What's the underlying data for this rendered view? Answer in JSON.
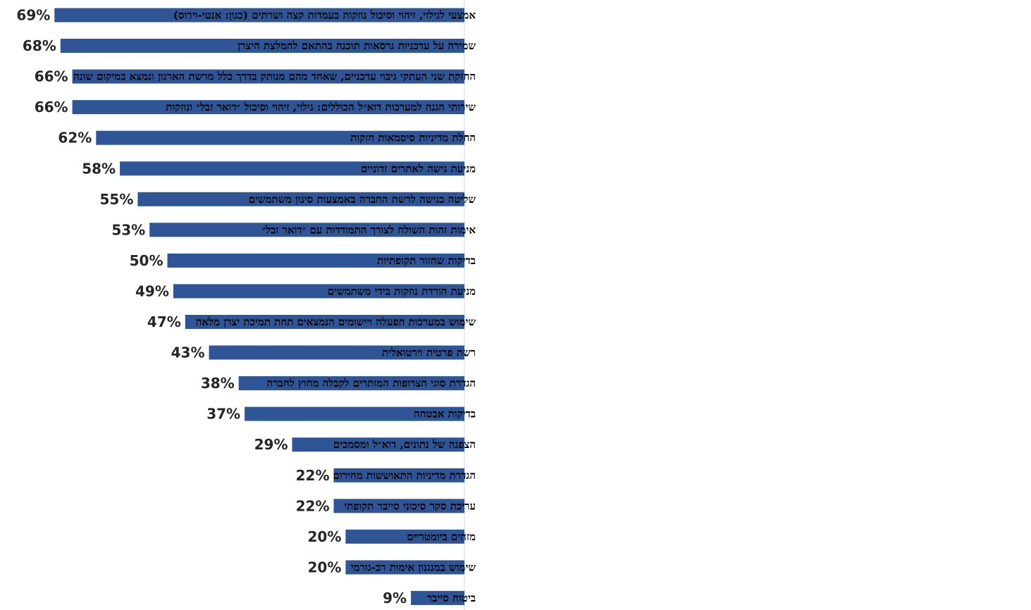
{
  "colors": {
    "bar": "#2F5597",
    "text": "#262626",
    "axis": "#D9D9D9"
  },
  "chart_data": {
    "type": "bar",
    "orientation": "horizontal",
    "value_suffix": "%",
    "xlim": [
      0,
      69
    ],
    "grid": false,
    "legend": "none",
    "categories": [
      "אמצעי לגילוי, זיהוי וסיכול נוזקות בעמדות קצה ושרתים (כגון: אנטי-וירוס)",
      "שמירה על עדכניות גרסאות תוכנה בהתאם להמלצת היצרן",
      "החזקת שני העתקי גיבוי עדכניים, שאחד מהם מנותק בדרך כלל מרשת הארגון ונמצא במיקום שונה",
      "שירותי הגנה למערכות דוא״ל הכוללים: גילוי, זיהוי וסיכול ״דואר זבל״ ונוזקות",
      "החלת מדיניות סיסמאות חזקות",
      "מניעת גישה לאתרים זדוניים",
      "שליטה בגישה לרשת החברה באמצעות סינון משתמשים",
      "אימות זהות השולח לצורך התמודדות עם ״דואר זבל״",
      "בדיקות שחזור תקופתיות",
      "מניעת הורדת נוזקות בידי משתמשים",
      "שימוש במערכות הפעלה ויישומים הנמצאים תחת תמיכת יצרן מלאה",
      "רשת פרטית וירטואלית",
      "הגדרת סוגי הצרופות המותרים לקבלה מחוץ לחברה",
      "בדיקות אבטחה",
      "הצפנה של נתונים, דוא״ל ומסמכים",
      "הגדרת מדיניות התאוששות מחירום",
      "עריכת סקר סיכוני סייבר תקופתי",
      "מזהים ביומטריים",
      "שימוש במנגנון אימות רב-גורמי",
      "ביטוח סייבר"
    ],
    "values": [
      69,
      68,
      66,
      66,
      62,
      58,
      55,
      53,
      50,
      49,
      47,
      43,
      38,
      37,
      29,
      22,
      22,
      20,
      20,
      9
    ],
    "value_labels": [
      "69%",
      "68%",
      "66%",
      "66%",
      "62%",
      "58%",
      "55%",
      "53%",
      "50%",
      "49%",
      "47%",
      "43%",
      "38%",
      "37%",
      "29%",
      "22%",
      "22%",
      "20%",
      "20%",
      "9%"
    ]
  }
}
